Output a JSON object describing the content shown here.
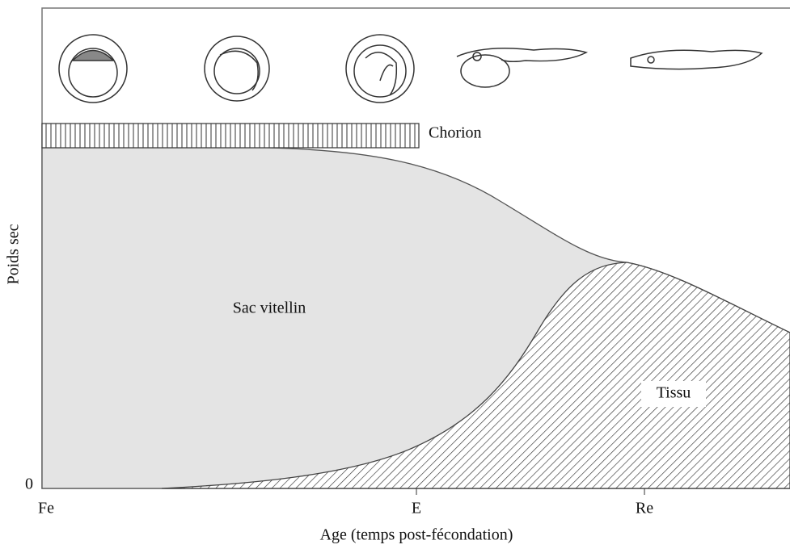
{
  "diagram": {
    "y_axis": {
      "label": "Poids sec",
      "origin": "0"
    },
    "x_axis": {
      "label": "Age (temps post-fécondation)",
      "ticks": [
        "Fe",
        "E",
        "Re"
      ]
    },
    "bands": {
      "chorion": "Chorion"
    },
    "regions": {
      "yolk": "Sac vitellin",
      "tissue": "Tissu"
    }
  }
}
